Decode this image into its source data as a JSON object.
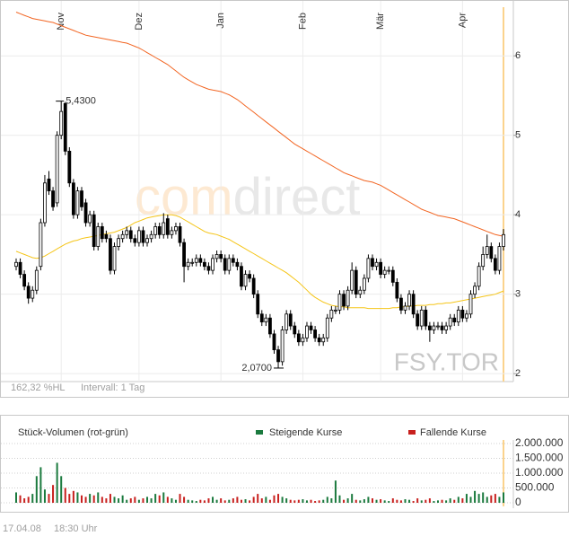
{
  "chart_data": [
    {
      "type": "candlestick",
      "categories": [
        null,
        null,
        null,
        null,
        null,
        null,
        null,
        null,
        null,
        null,
        null,
        "Nov",
        null,
        null,
        null,
        null,
        null,
        null,
        null,
        null,
        null,
        null,
        null,
        null,
        null,
        null,
        null,
        null,
        null,
        null,
        "Dez",
        null,
        null,
        null,
        null,
        null,
        null,
        null,
        null,
        null,
        null,
        null,
        null,
        null,
        null,
        null,
        null,
        null,
        null,
        null,
        "Jan",
        null,
        null,
        null,
        null,
        null,
        null,
        null,
        null,
        null,
        null,
        null,
        null,
        null,
        null,
        null,
        null,
        null,
        null,
        null,
        "Feb",
        null,
        null,
        null,
        null,
        null,
        null,
        null,
        null,
        null,
        null,
        null,
        null,
        null,
        null,
        null,
        null,
        null,
        null,
        "Mär",
        null,
        null,
        null,
        null,
        null,
        null,
        null,
        null,
        null,
        null,
        null,
        null,
        null,
        null,
        null,
        null,
        null,
        null,
        null,
        "Apr",
        null,
        null,
        null,
        null,
        null,
        null,
        null,
        null,
        null,
        null
      ],
      "open": [
        3.35,
        3.4,
        3.25,
        3.1,
        2.95,
        3.05,
        3.35,
        3.9,
        4.45,
        4.3,
        4.15,
        5.0,
        5.4,
        4.8,
        4.4,
        4.0,
        4.3,
        4.15,
        3.9,
        4.0,
        3.6,
        3.85,
        3.75,
        3.7,
        3.3,
        3.6,
        3.7,
        3.75,
        3.8,
        3.7,
        3.65,
        3.8,
        3.65,
        3.7,
        3.75,
        3.85,
        3.75,
        3.95,
        3.75,
        3.8,
        3.85,
        3.65,
        3.35,
        3.4,
        3.4,
        3.45,
        3.4,
        3.35,
        3.3,
        3.45,
        3.5,
        3.45,
        3.3,
        3.45,
        3.4,
        3.35,
        3.1,
        3.25,
        3.2,
        3.0,
        2.75,
        2.65,
        2.7,
        2.5,
        2.3,
        2.15,
        2.55,
        2.75,
        2.6,
        2.5,
        2.4,
        2.45,
        2.6,
        2.55,
        2.45,
        2.4,
        2.45,
        2.7,
        2.8,
        2.8,
        3.0,
        2.85,
        3.05,
        3.3,
        3.0,
        3.05,
        3.2,
        3.45,
        3.35,
        3.4,
        3.25,
        3.3,
        3.3,
        3.15,
        2.95,
        2.8,
        2.85,
        3.0,
        2.75,
        2.6,
        2.8,
        2.6,
        2.55,
        2.6,
        2.6,
        2.55,
        2.6,
        2.7,
        2.65,
        2.8,
        2.7,
        2.75,
        3.0,
        3.1,
        3.35,
        3.5,
        3.6,
        3.45,
        3.3,
        3.6
      ],
      "high": [
        3.45,
        3.45,
        3.3,
        3.15,
        3.1,
        3.35,
        3.95,
        4.5,
        4.55,
        4.35,
        5.05,
        5.43,
        5.42,
        4.85,
        4.45,
        4.35,
        4.35,
        4.2,
        4.05,
        4.05,
        3.9,
        3.9,
        3.8,
        3.75,
        3.65,
        3.75,
        3.8,
        3.85,
        3.85,
        3.75,
        3.85,
        3.85,
        3.75,
        3.8,
        3.9,
        3.9,
        4.02,
        4.0,
        3.85,
        3.9,
        3.9,
        3.7,
        3.45,
        3.45,
        3.5,
        3.5,
        3.45,
        3.4,
        3.5,
        3.55,
        3.55,
        3.5,
        3.5,
        3.5,
        3.45,
        3.4,
        3.3,
        3.3,
        3.25,
        3.05,
        2.8,
        2.75,
        2.75,
        2.55,
        2.35,
        2.6,
        2.8,
        2.8,
        2.65,
        2.55,
        2.5,
        2.65,
        2.65,
        2.6,
        2.5,
        2.5,
        2.75,
        2.85,
        2.85,
        3.05,
        3.05,
        3.1,
        3.4,
        3.35,
        3.1,
        3.25,
        3.5,
        3.5,
        3.45,
        3.45,
        3.35,
        3.35,
        3.35,
        3.2,
        3.0,
        2.9,
        3.05,
        3.05,
        2.8,
        2.85,
        2.85,
        2.65,
        2.65,
        2.65,
        2.65,
        2.65,
        2.75,
        2.75,
        2.85,
        2.85,
        2.8,
        3.05,
        3.15,
        3.4,
        3.6,
        3.75,
        3.65,
        3.5,
        3.65,
        3.82
      ],
      "low": [
        3.3,
        3.2,
        3.05,
        2.88,
        2.9,
        3.0,
        3.3,
        3.85,
        4.25,
        4.05,
        4.1,
        4.95,
        4.75,
        4.35,
        3.95,
        3.95,
        4.05,
        3.85,
        3.85,
        3.55,
        3.55,
        3.65,
        3.65,
        3.25,
        3.25,
        3.55,
        3.65,
        3.7,
        3.65,
        3.6,
        3.6,
        3.6,
        3.6,
        3.65,
        3.7,
        3.7,
        3.7,
        3.7,
        3.7,
        3.75,
        3.6,
        3.15,
        3.3,
        3.35,
        3.35,
        3.35,
        3.3,
        3.25,
        3.25,
        3.4,
        3.4,
        3.25,
        3.25,
        3.35,
        3.3,
        3.05,
        3.05,
        3.15,
        2.95,
        2.7,
        2.6,
        2.6,
        2.45,
        2.25,
        2.07,
        2.1,
        2.5,
        2.55,
        2.45,
        2.35,
        2.35,
        2.4,
        2.5,
        2.4,
        2.35,
        2.35,
        2.4,
        2.65,
        2.75,
        2.75,
        2.8,
        2.8,
        3.0,
        2.95,
        2.95,
        3.0,
        3.15,
        3.3,
        3.3,
        3.2,
        3.2,
        3.25,
        3.1,
        2.9,
        2.75,
        2.75,
        2.8,
        2.7,
        2.55,
        2.55,
        2.55,
        2.4,
        2.5,
        2.55,
        2.5,
        2.5,
        2.55,
        2.6,
        2.6,
        2.65,
        2.65,
        2.7,
        2.95,
        3.05,
        3.3,
        3.45,
        3.4,
        3.25,
        3.25,
        3.55
      ],
      "close": [
        3.4,
        3.25,
        3.1,
        2.95,
        3.05,
        3.3,
        3.9,
        4.4,
        4.3,
        4.1,
        5.0,
        5.3,
        4.8,
        4.4,
        4.0,
        4.3,
        4.1,
        3.9,
        4.0,
        3.6,
        3.85,
        3.7,
        3.7,
        3.3,
        3.6,
        3.7,
        3.75,
        3.8,
        3.7,
        3.65,
        3.8,
        3.65,
        3.7,
        3.75,
        3.85,
        3.75,
        3.9,
        3.75,
        3.8,
        3.85,
        3.65,
        3.35,
        3.4,
        3.4,
        3.45,
        3.4,
        3.35,
        3.3,
        3.45,
        3.5,
        3.45,
        3.3,
        3.45,
        3.4,
        3.35,
        3.1,
        3.25,
        3.2,
        3.0,
        2.75,
        2.65,
        2.7,
        2.5,
        2.3,
        2.15,
        2.55,
        2.75,
        2.6,
        2.5,
        2.4,
        2.45,
        2.6,
        2.55,
        2.45,
        2.4,
        2.45,
        2.7,
        2.8,
        2.8,
        3.0,
        2.85,
        3.05,
        3.3,
        3.0,
        3.05,
        3.2,
        3.45,
        3.35,
        3.4,
        3.25,
        3.3,
        3.3,
        3.15,
        2.95,
        2.8,
        2.85,
        3.0,
        2.75,
        2.6,
        2.8,
        2.6,
        2.55,
        2.6,
        2.6,
        2.55,
        2.6,
        2.7,
        2.65,
        2.8,
        2.7,
        2.75,
        3.0,
        3.1,
        3.35,
        3.5,
        3.6,
        3.45,
        3.3,
        3.6,
        3.75
      ],
      "lines": [
        {
          "color": "#f26522",
          "values": [
            6.55,
            6.53,
            6.51,
            6.49,
            6.47,
            6.46,
            6.45,
            6.44,
            6.43,
            6.42,
            6.4,
            6.38,
            6.36,
            6.34,
            6.32,
            6.3,
            6.28,
            6.26,
            6.25,
            6.24,
            6.23,
            6.22,
            6.21,
            6.2,
            6.19,
            6.18,
            6.17,
            6.16,
            6.14,
            6.12,
            6.1,
            6.07,
            6.04,
            6.01,
            5.98,
            5.95,
            5.92,
            5.89,
            5.85,
            5.81,
            5.77,
            5.73,
            5.7,
            5.67,
            5.64,
            5.62,
            5.6,
            5.58,
            5.57,
            5.56,
            5.55,
            5.53,
            5.51,
            5.48,
            5.45,
            5.41,
            5.37,
            5.33,
            5.29,
            5.25,
            5.21,
            5.17,
            5.13,
            5.09,
            5.05,
            5.01,
            4.97,
            4.93,
            4.89,
            4.86,
            4.83,
            4.8,
            4.77,
            4.74,
            4.71,
            4.68,
            4.65,
            4.62,
            4.59,
            4.56,
            4.53,
            4.51,
            4.49,
            4.47,
            4.45,
            4.43,
            4.42,
            4.41,
            4.39,
            4.37,
            4.34,
            4.31,
            4.28,
            4.25,
            4.22,
            4.19,
            4.16,
            4.13,
            4.1,
            4.07,
            4.05,
            4.03,
            4.01,
            3.99,
            3.98,
            3.97,
            3.96,
            3.95,
            3.93,
            3.91,
            3.89,
            3.87,
            3.85,
            3.83,
            3.81,
            3.79,
            3.77,
            3.75,
            3.74,
            3.73
          ]
        },
        {
          "color": "#f5c518",
          "values": [
            3.54,
            3.52,
            3.5,
            3.48,
            3.46,
            3.45,
            3.46,
            3.48,
            3.51,
            3.54,
            3.57,
            3.6,
            3.63,
            3.65,
            3.67,
            3.68,
            3.7,
            3.71,
            3.72,
            3.73,
            3.74,
            3.75,
            3.76,
            3.77,
            3.78,
            3.8,
            3.82,
            3.84,
            3.87,
            3.9,
            3.92,
            3.94,
            3.96,
            3.97,
            3.98,
            3.99,
            4.0,
            4.0,
            4.0,
            3.99,
            3.97,
            3.94,
            3.91,
            3.88,
            3.85,
            3.82,
            3.79,
            3.77,
            3.76,
            3.75,
            3.73,
            3.71,
            3.69,
            3.66,
            3.63,
            3.6,
            3.57,
            3.54,
            3.51,
            3.48,
            3.45,
            3.42,
            3.39,
            3.36,
            3.33,
            3.3,
            3.27,
            3.23,
            3.19,
            3.15,
            3.1,
            3.05,
            3.0,
            2.96,
            2.93,
            2.9,
            2.88,
            2.86,
            2.85,
            2.84,
            2.84,
            2.83,
            2.83,
            2.83,
            2.83,
            2.83,
            2.82,
            2.82,
            2.82,
            2.82,
            2.82,
            2.82,
            2.83,
            2.83,
            2.84,
            2.84,
            2.85,
            2.85,
            2.86,
            2.86,
            2.86,
            2.87,
            2.87,
            2.88,
            2.88,
            2.89,
            2.89,
            2.9,
            2.91,
            2.92,
            2.93,
            2.94,
            2.95,
            2.96,
            2.97,
            2.98,
            2.99,
            3.0,
            3.02,
            3.04
          ]
        }
      ],
      "up_color": "#ffffff",
      "down_color": "#000000",
      "ylim": [
        1.9,
        6.59
      ],
      "yticks": [
        2,
        3,
        4,
        5,
        6
      ],
      "grid": true,
      "annotations": [
        {
          "label": "5,4300",
          "value": 5.43
        },
        {
          "label": "2,0700",
          "value": 2.07
        }
      ],
      "range_label": "162,32 %HL",
      "interval_label": "Intervall: 1 Tag",
      "watermark": [
        "com",
        "direct"
      ],
      "symbol": "FSY.TOR"
    },
    {
      "type": "bar",
      "title": "Stück-Volumen (rot-grün)",
      "series": [
        {
          "name": "Steigende Kurse",
          "color": "#1b7a3e",
          "values": [
            350000,
            null,
            null,
            null,
            300000,
            900000,
            1200000,
            450000,
            null,
            null,
            1350000,
            900000,
            null,
            null,
            null,
            350000,
            null,
            null,
            300000,
            null,
            350000,
            null,
            null,
            null,
            200000,
            150000,
            250000,
            100000,
            null,
            null,
            100000,
            null,
            200000,
            150000,
            300000,
            null,
            350000,
            null,
            150000,
            100000,
            null,
            null,
            100000,
            80000,
            60000,
            null,
            null,
            null,
            200000,
            100000,
            null,
            null,
            100000,
            null,
            null,
            null,
            120000,
            null,
            null,
            null,
            null,
            200000,
            null,
            null,
            null,
            200000,
            150000,
            null,
            null,
            null,
            120000,
            80000,
            null,
            null,
            null,
            100000,
            200000,
            150000,
            750000,
            250000,
            null,
            150000,
            300000,
            null,
            80000,
            120000,
            200000,
            null,
            100000,
            null,
            80000,
            60000,
            null,
            null,
            null,
            120000,
            100000,
            null,
            null,
            80000,
            null,
            null,
            60000,
            80000,
            null,
            80000,
            150000,
            null,
            200000,
            null,
            300000,
            200000,
            400000,
            300000,
            350000,
            200000,
            null,
            null,
            200000,
            350000
          ]
        },
        {
          "name": "Fallende Kurse",
          "color": "#c8201e",
          "values": [
            null,
            250000,
            150000,
            200000,
            null,
            null,
            null,
            null,
            300000,
            600000,
            null,
            null,
            500000,
            300000,
            400000,
            null,
            250000,
            200000,
            null,
            250000,
            null,
            200000,
            150000,
            300000,
            null,
            null,
            null,
            null,
            150000,
            200000,
            null,
            150000,
            null,
            null,
            null,
            250000,
            null,
            200000,
            null,
            null,
            300000,
            200000,
            null,
            null,
            null,
            100000,
            80000,
            150000,
            null,
            null,
            150000,
            80000,
            null,
            150000,
            200000,
            100000,
            null,
            80000,
            200000,
            300000,
            150000,
            null,
            100000,
            250000,
            300000,
            null,
            null,
            100000,
            80000,
            100000,
            null,
            null,
            100000,
            60000,
            80000,
            null,
            null,
            null,
            null,
            null,
            100000,
            null,
            null,
            100000,
            null,
            null,
            null,
            150000,
            null,
            120000,
            null,
            null,
            150000,
            100000,
            80000,
            null,
            null,
            60000,
            150000,
            null,
            100000,
            150000,
            null,
            null,
            100000,
            null,
            null,
            100000,
            null,
            150000,
            null,
            null,
            null,
            null,
            null,
            null,
            250000,
            300000,
            null,
            null
          ]
        }
      ],
      "ylim": [
        0,
        2000000
      ],
      "yticks": [
        0,
        {
          "value": 500000,
          "label": "500.000"
        },
        {
          "value": 1000000,
          "label": "1.000.000"
        },
        {
          "value": 1500000,
          "label": "1.500.000"
        },
        {
          "value": 2000000,
          "label": "2.000.000"
        }
      ],
      "grid": true
    }
  ],
  "footer": {
    "date": "17.04.08",
    "time": "18:30 Uhr"
  }
}
